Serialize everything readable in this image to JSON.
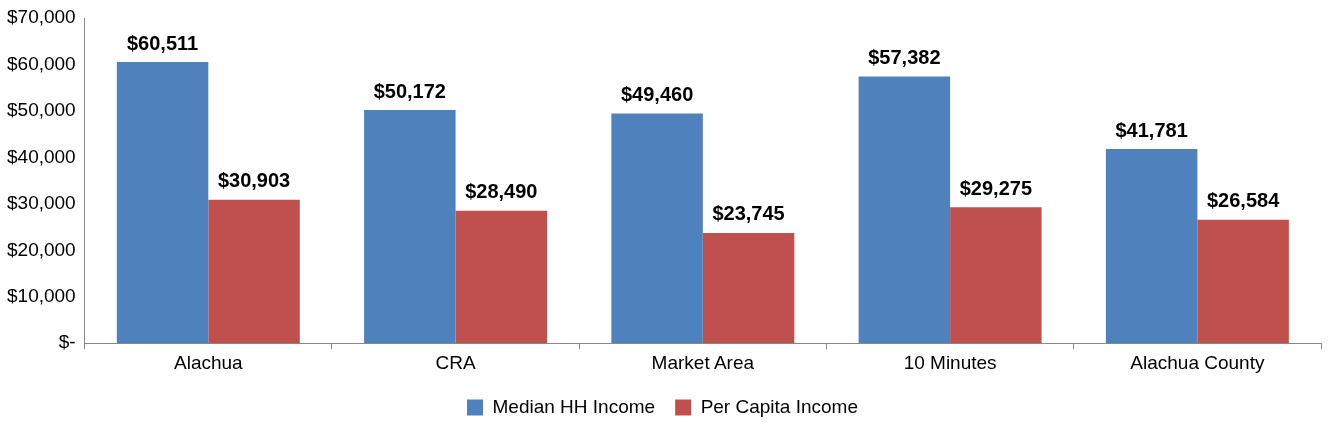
{
  "chart_data": {
    "type": "bar",
    "categories": [
      "Alachua",
      "CRA",
      "Market Area",
      "10 Minutes",
      "Alachua County"
    ],
    "series": [
      {
        "name": "Median HH Income",
        "color": "#4f81bd",
        "values": [
          60511,
          50172,
          49460,
          57382,
          41781
        ],
        "value_labels": [
          "$60,511",
          "$50,172",
          "$49,460",
          "$57,382",
          "$41,781"
        ]
      },
      {
        "name": "Per Capita Income",
        "color": "#c0504d",
        "values": [
          30903,
          28490,
          23745,
          29275,
          26584
        ],
        "value_labels": [
          "$30,903",
          "$28,490",
          "$23,745",
          "$29,275",
          "$26,584"
        ]
      }
    ],
    "ylim": [
      0,
      70000
    ],
    "yticks": [
      {
        "value": 0,
        "label": "$-"
      },
      {
        "value": 10000,
        "label": "$10,000"
      },
      {
        "value": 20000,
        "label": "$20,000"
      },
      {
        "value": 30000,
        "label": "$30,000"
      },
      {
        "value": 40000,
        "label": "$40,000"
      },
      {
        "value": 50000,
        "label": "$50,000"
      },
      {
        "value": 60000,
        "label": "$60,000"
      },
      {
        "value": 70000,
        "label": "$70,000"
      }
    ],
    "grid": false,
    "legend": "bottom"
  }
}
